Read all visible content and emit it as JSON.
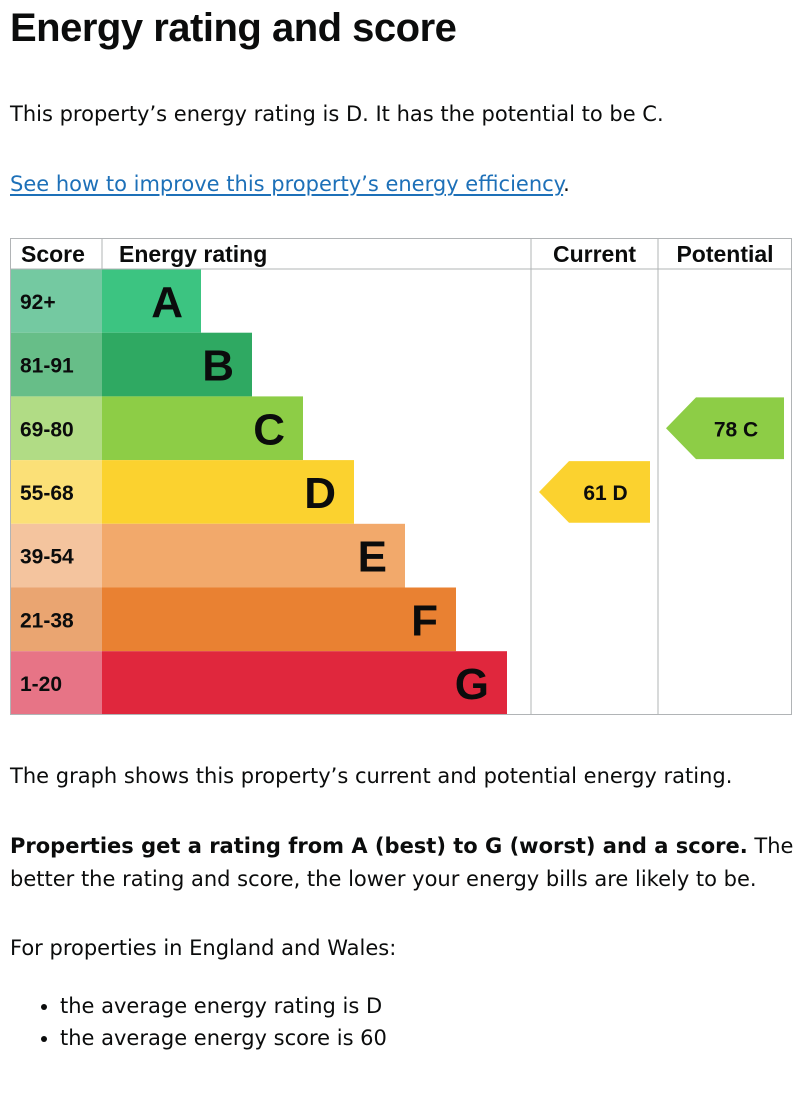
{
  "page": {
    "title": "Energy rating and score",
    "intro": "This property’s energy rating is D. It has the potential to be C.",
    "improve_link": "See how to improve this property’s energy efficiency",
    "improve_suffix": ".",
    "graph_caption": "The graph shows this property’s current and potential energy rating.",
    "explain_bold": "Properties get a rating from A (best) to G (worst) and a score.",
    "explain_rest": " The better the rating and score, the lower your energy bills are likely to be.",
    "averages_heading": "For properties in England and Wales:",
    "averages": [
      "the average energy rating is D",
      "the average energy score is 60"
    ]
  },
  "chart_data": {
    "type": "bar",
    "headers": {
      "score": "Score",
      "rating": "Energy rating",
      "current": "Current",
      "potential": "Potential"
    },
    "bands": [
      {
        "letter": "A",
        "range": "92+",
        "min": 92,
        "max": 100,
        "color": "#3cc481",
        "score_bg": "#74c9a1"
      },
      {
        "letter": "B",
        "range": "81-91",
        "min": 81,
        "max": 91,
        "color": "#2fa962",
        "score_bg": "#67be88"
      },
      {
        "letter": "C",
        "range": "69-80",
        "min": 69,
        "max": 80,
        "color": "#8dcd46",
        "score_bg": "#b1dc85"
      },
      {
        "letter": "D",
        "range": "55-68",
        "min": 55,
        "max": 68,
        "color": "#fbd22f",
        "score_bg": "#fbe077"
      },
      {
        "letter": "E",
        "range": "39-54",
        "min": 39,
        "max": 54,
        "color": "#f2a96b",
        "score_bg": "#f4c49e"
      },
      {
        "letter": "F",
        "range": "21-38",
        "min": 21,
        "max": 38,
        "color": "#e98132",
        "score_bg": "#eaa571"
      },
      {
        "letter": "G",
        "range": "1-20",
        "min": 1,
        "max": 20,
        "color": "#e0273d",
        "score_bg": "#e77486"
      }
    ],
    "current": {
      "score": 61,
      "letter": "D",
      "label": "61  D",
      "color": "#fbd22f"
    },
    "potential": {
      "score": 78,
      "letter": "C",
      "label": "78  C",
      "color": "#8dcd46"
    }
  }
}
